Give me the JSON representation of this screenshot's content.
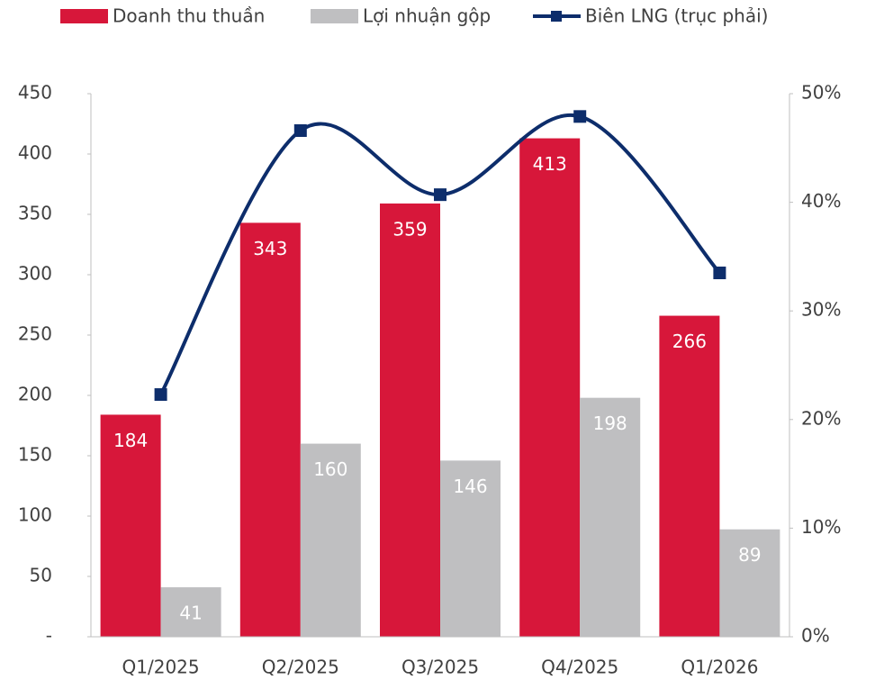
{
  "chart_data": {
    "type": "bar",
    "categories": [
      "Q1/2025",
      "Q2/2025",
      "Q3/2025",
      "Q4/2025",
      "Q1/2026"
    ],
    "series": [
      {
        "name": "Doanh thu thuần",
        "color": "#d7173a",
        "values": [
          184,
          343,
          359,
          413,
          266
        ]
      },
      {
        "name": "Lợi nhuận gộp",
        "color": "#bfbfc1",
        "values": [
          41,
          160,
          146,
          198,
          89
        ]
      },
      {
        "name": "Biên LNG (trục phải)",
        "color": "#0d2d6b",
        "type": "line",
        "axis": "y2",
        "smooth": true,
        "values": [
          22.3,
          46.6,
          40.7,
          47.9,
          33.5
        ]
      }
    ],
    "ylim": [
      0,
      450
    ],
    "yticks": [
      {
        "value": 0,
        "label": "-"
      },
      50,
      100,
      150,
      200,
      250,
      300,
      350,
      400,
      450
    ],
    "y2lim": [
      0,
      50
    ],
    "y2ticks": [
      {
        "value": 0,
        "label": "0%"
      },
      {
        "value": 10,
        "label": "10%"
      },
      {
        "value": 20,
        "label": "20%"
      },
      {
        "value": 30,
        "label": "30%"
      },
      {
        "value": 40,
        "label": "40%"
      },
      {
        "value": 50,
        "label": "50%"
      }
    ],
    "legend": "top",
    "grid": false
  }
}
